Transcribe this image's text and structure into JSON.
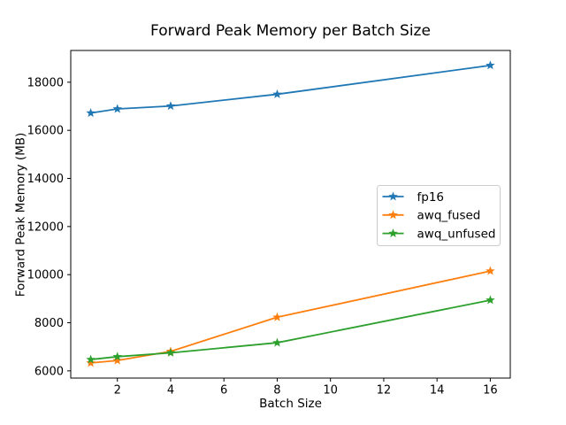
{
  "chart_data": {
    "type": "line",
    "title": "Forward Peak Memory per Batch Size",
    "xlabel": "Batch Size",
    "ylabel": "Forward Peak Memory (MB)",
    "x": [
      1,
      2,
      4,
      8,
      16
    ],
    "series": [
      {
        "name": "fp16",
        "color": "#1f77b4",
        "values": [
          16720,
          16890,
          17010,
          17500,
          18700
        ]
      },
      {
        "name": "awq_fused",
        "color": "#ff7f0e",
        "values": [
          6330,
          6430,
          6810,
          8230,
          10150
        ]
      },
      {
        "name": "awq_unfused",
        "color": "#2ca02c",
        "values": [
          6470,
          6590,
          6750,
          7170,
          8940
        ]
      }
    ],
    "marker": "star",
    "xticks": [
      2,
      4,
      6,
      8,
      10,
      12,
      14,
      16
    ],
    "yticks": [
      6000,
      8000,
      10000,
      12000,
      14000,
      16000,
      18000
    ],
    "xlim": [
      0.25,
      16.75
    ],
    "ylim": [
      5700,
      19320
    ],
    "grid": false,
    "legend_position": "center right",
    "colors": {
      "background": "#ffffff",
      "axis": "#000000",
      "legend_border": "#cccccc",
      "text": "#000000"
    }
  }
}
